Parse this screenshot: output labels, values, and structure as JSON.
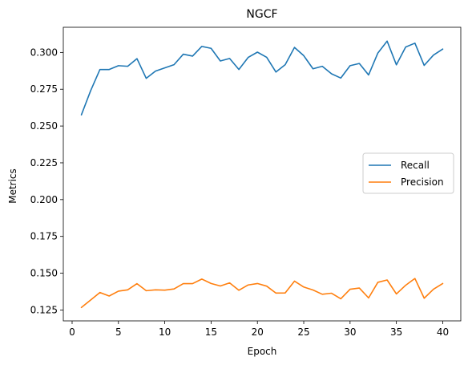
{
  "chart_data": {
    "type": "line",
    "title": "NGCF",
    "xlabel": "Epoch",
    "ylabel": "Metrics",
    "xlim": [
      -0.95,
      41.95
    ],
    "ylim": [
      0.1176,
      0.3171
    ],
    "xticks": [
      0,
      5,
      10,
      15,
      20,
      25,
      30,
      35,
      40
    ],
    "xtick_labels": [
      "0",
      "5",
      "10",
      "15",
      "20",
      "25",
      "30",
      "35",
      "40"
    ],
    "yticks": [
      0.125,
      0.15,
      0.175,
      0.2,
      0.225,
      0.25,
      0.275,
      0.3
    ],
    "ytick_labels": [
      "0.125",
      "0.150",
      "0.175",
      "0.200",
      "0.225",
      "0.250",
      "0.275",
      "0.300"
    ],
    "grid": false,
    "legend_position": "center-right",
    "x": [
      1,
      2,
      3,
      4,
      5,
      6,
      7,
      8,
      9,
      10,
      11,
      12,
      13,
      14,
      15,
      16,
      17,
      18,
      19,
      20,
      21,
      22,
      23,
      24,
      25,
      26,
      27,
      28,
      29,
      30,
      31,
      32,
      33,
      34,
      35,
      36,
      37,
      38,
      39,
      40
    ],
    "series": [
      {
        "name": "Recall",
        "color": "#1f77b4",
        "values": [
          0.2576,
          0.274,
          0.2884,
          0.2884,
          0.291,
          0.2906,
          0.2958,
          0.2824,
          0.2873,
          0.2895,
          0.2917,
          0.2988,
          0.2975,
          0.3041,
          0.3028,
          0.2942,
          0.2959,
          0.2884,
          0.2966,
          0.3002,
          0.2967,
          0.2867,
          0.2917,
          0.3034,
          0.2978,
          0.2889,
          0.2906,
          0.2855,
          0.2826,
          0.291,
          0.2925,
          0.2847,
          0.2996,
          0.3077,
          0.2916,
          0.3037,
          0.3063,
          0.2912,
          0.2982,
          0.3023
        ]
      },
      {
        "name": "Precision",
        "color": "#ff7f0e",
        "values": [
          0.1267,
          0.1318,
          0.1369,
          0.1345,
          0.1378,
          0.1387,
          0.1429,
          0.1381,
          0.1387,
          0.1385,
          0.1393,
          0.1429,
          0.1429,
          0.146,
          0.143,
          0.1413,
          0.1434,
          0.1384,
          0.142,
          0.143,
          0.1412,
          0.1365,
          0.1366,
          0.1446,
          0.1406,
          0.1386,
          0.1357,
          0.1364,
          0.1326,
          0.1391,
          0.1399,
          0.1332,
          0.1438,
          0.1454,
          0.1359,
          0.1418,
          0.1464,
          0.133,
          0.1391,
          0.143
        ]
      }
    ]
  }
}
